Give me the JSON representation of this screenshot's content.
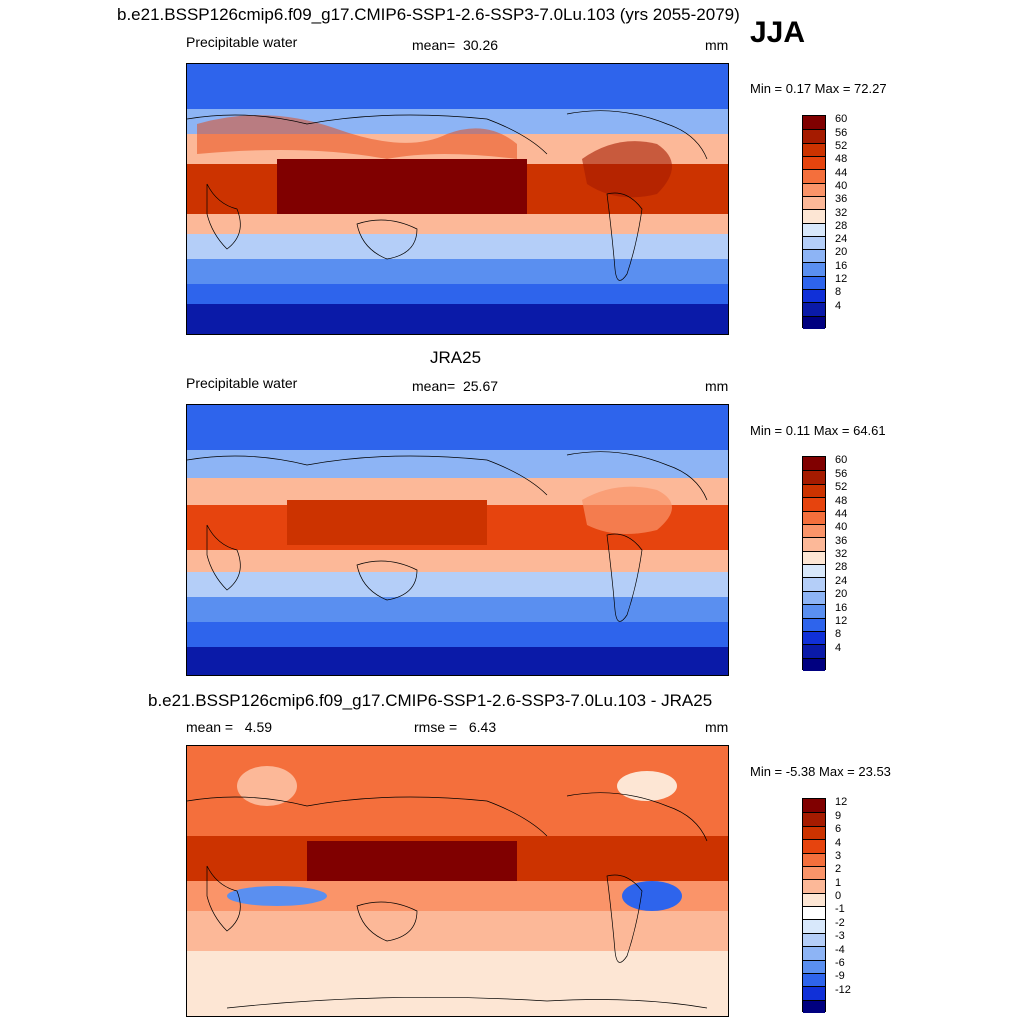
{
  "season": "JJA",
  "panels": [
    {
      "title": "b.e21.BSSP126cmip6.f09_g17.CMIP6-SSP1-2.6-SSP3-7.0Lu.103 (yrs 2055-2079)",
      "variable": "Precipitable water",
      "stat_label": "mean=",
      "stat_value": "30.26",
      "units": "mm",
      "minmax": "Min =   0.17 Max =  72.27",
      "colorbar_levels": [
        "60",
        "56",
        "52",
        "48",
        "44",
        "40",
        "36",
        "32",
        "28",
        "24",
        "20",
        "16",
        "12",
        "8",
        "4"
      ],
      "colorbar_colors": [
        "#800000",
        "#a51b00",
        "#cc3300",
        "#e6440e",
        "#f46f3c",
        "#fa9469",
        "#fcb898",
        "#fde6d4",
        "#d8e8fb",
        "#b4cef8",
        "#8db4f5",
        "#5a8ff0",
        "#2e64ec",
        "#1030d8",
        "#0a1aa8",
        "#000080"
      ]
    },
    {
      "title": "JRA25",
      "variable": "Precipitable water",
      "stat_label": "mean=",
      "stat_value": "25.67",
      "units": "mm",
      "minmax": "Min =   0.11 Max =  64.61",
      "colorbar_levels": [
        "60",
        "56",
        "52",
        "48",
        "44",
        "40",
        "36",
        "32",
        "28",
        "24",
        "20",
        "16",
        "12",
        "8",
        "4"
      ],
      "colorbar_colors": [
        "#800000",
        "#a51b00",
        "#cc3300",
        "#e6440e",
        "#f46f3c",
        "#fa9469",
        "#fcb898",
        "#fde6d4",
        "#d8e8fb",
        "#b4cef8",
        "#8db4f5",
        "#5a8ff0",
        "#2e64ec",
        "#1030d8",
        "#0a1aa8",
        "#000080"
      ]
    },
    {
      "title": "b.e21.BSSP126cmip6.f09_g17.CMIP6-SSP1-2.6-SSP3-7.0Lu.103 - JRA25",
      "stat_label": "mean =",
      "stat_value": "4.59",
      "stat2_label": "rmse =",
      "stat2_value": "6.43",
      "units": "mm",
      "minmax": "Min =  -5.38 Max =  23.53",
      "colorbar_levels": [
        "12",
        "9",
        "6",
        "4",
        "3",
        "2",
        "1",
        "0",
        "-1",
        "-2",
        "-3",
        "-4",
        "-6",
        "-9",
        "-12"
      ],
      "colorbar_colors": [
        "#800000",
        "#a51b00",
        "#cc3300",
        "#e6440e",
        "#f46f3c",
        "#fa9469",
        "#fcb898",
        "#fde6d4",
        "#ffffff",
        "#d8e8fb",
        "#b4cef8",
        "#8db4f5",
        "#5a8ff0",
        "#2e64ec",
        "#1030d8",
        "#000080"
      ]
    }
  ]
}
